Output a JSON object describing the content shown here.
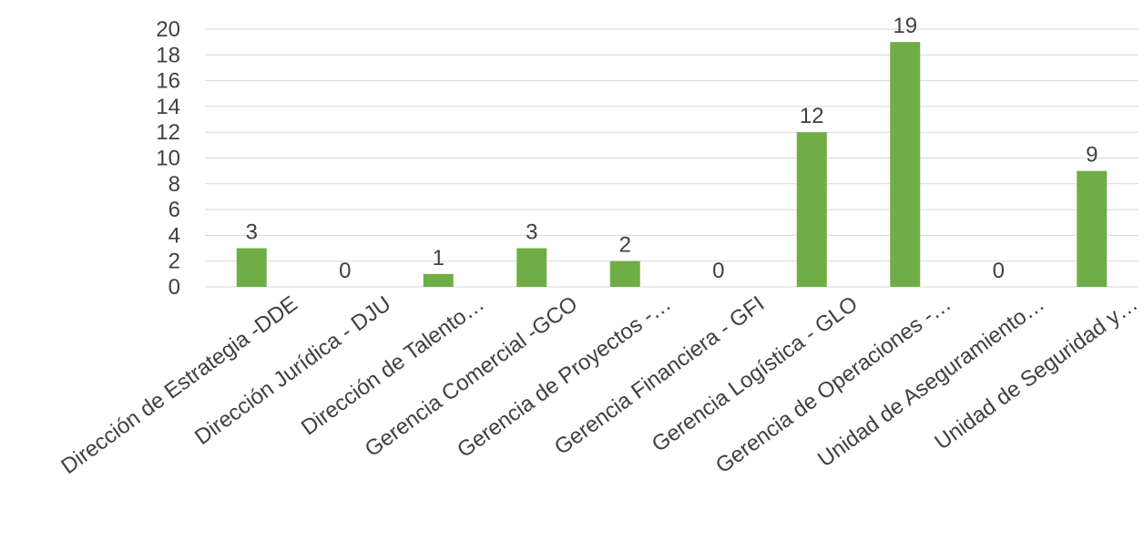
{
  "chart_data": {
    "type": "bar",
    "categories": [
      "Dirección de Estrategia -DDE",
      "Dirección Jurídica - DJU",
      "Dirección de Talento…",
      "Gerencia Comercial -GCO",
      "Gerencia de Proyectos -…",
      "Gerencia Financiera - GFI",
      "Gerencia Logística - GLO",
      "Gerencia de Operaciones -…",
      "Unidad de Aseguramiento…",
      "Unidad de Seguridad y…"
    ],
    "values": [
      3,
      0,
      1,
      3,
      2,
      0,
      12,
      19,
      0,
      9
    ],
    "data_labels": [
      "3",
      "0",
      "1",
      "3",
      "2",
      "0",
      "12",
      "19",
      "0",
      "9"
    ],
    "yticks": [
      "0",
      "2",
      "4",
      "6",
      "8",
      "10",
      "12",
      "14",
      "16",
      "18",
      "20"
    ],
    "ylim": [
      0,
      20
    ],
    "grid": true,
    "legend": "none",
    "colors": {
      "bar": "#70ad47",
      "grid": "#d9d9d9",
      "text": "#404040"
    }
  }
}
